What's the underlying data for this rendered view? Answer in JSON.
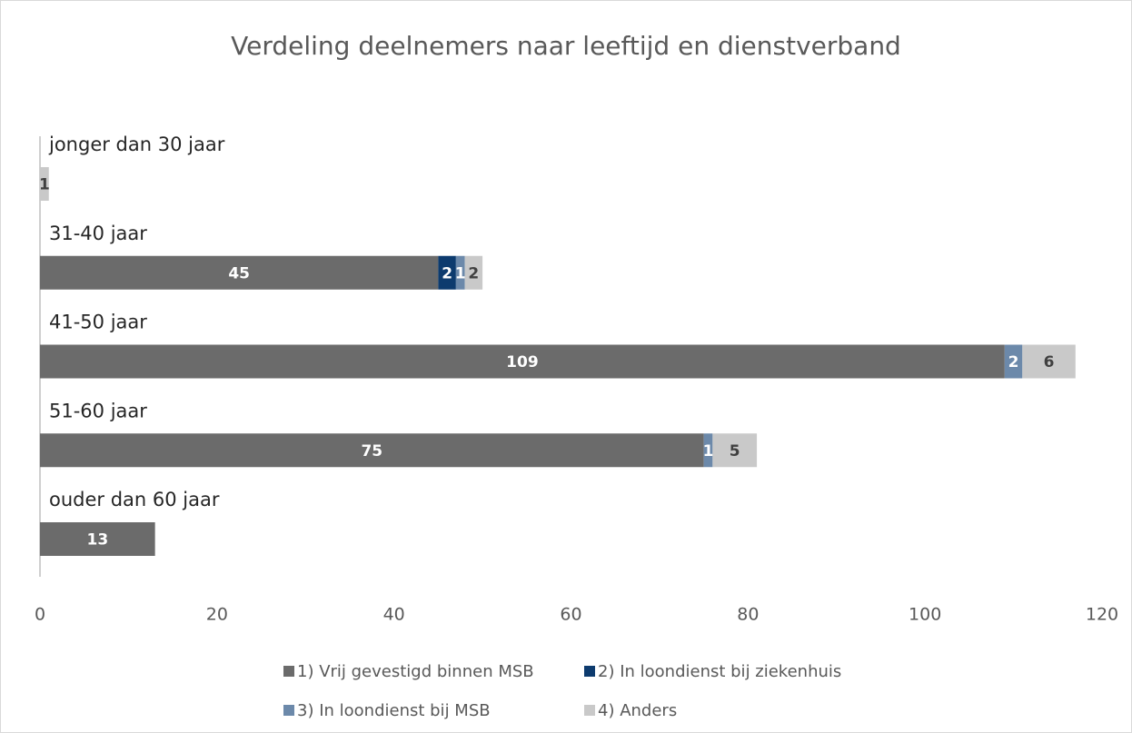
{
  "chart_data": {
    "type": "stacked-barh",
    "title": "Verdeling deelnemers naar leeftijd en dienstverband",
    "categories": [
      "jonger dan 30 jaar",
      "31-40 jaar",
      "41-50 jaar",
      "51-60 jaar",
      "ouder dan 60 jaar"
    ],
    "series": [
      {
        "name": "1) Vrij gevestigd binnen MSB",
        "color": "#6b6b6b",
        "values": [
          null,
          45,
          109,
          75,
          13
        ]
      },
      {
        "name": "2) In loondienst bij ziekenhuis",
        "color": "#0d3b6e",
        "values": [
          null,
          2,
          null,
          null,
          null
        ]
      },
      {
        "name": "3) In loondienst bij MSB",
        "color": "#6c89aa",
        "values": [
          null,
          1,
          2,
          1,
          null
        ]
      },
      {
        "name": "4) Anders",
        "color": "#c9c9c9",
        "values": [
          1,
          2,
          6,
          5,
          null
        ]
      }
    ],
    "xlim": [
      0,
      120
    ],
    "xticks": [
      0,
      20,
      40,
      60,
      80,
      100,
      120
    ]
  }
}
